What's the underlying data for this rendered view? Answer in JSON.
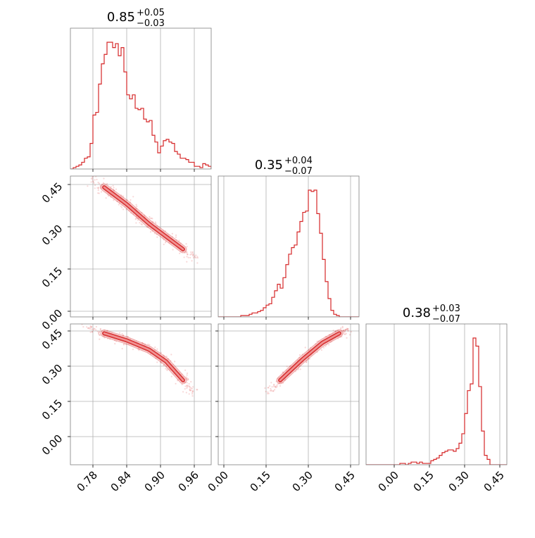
{
  "chart_data": {
    "type": "corner",
    "color": "#d62728",
    "params": [
      {
        "median": "0.85",
        "plus": "+0.05",
        "minus": "−0.03",
        "range": [
          0.74,
          0.99
        ],
        "ticks": [
          0.78,
          0.84,
          0.9,
          0.96
        ],
        "tick_labels": [
          "0.78",
          "0.84",
          "0.90",
          "0.96"
        ]
      },
      {
        "median": "0.35",
        "plus": "+0.04",
        "minus": "−0.07",
        "range": [
          -0.02,
          0.48
        ],
        "ticks": [
          0.0,
          0.15,
          0.3,
          0.45
        ],
        "tick_labels": [
          "0.00",
          "0.15",
          "0.30",
          "0.45"
        ]
      },
      {
        "median": "0.38",
        "plus": "+0.03",
        "minus": "−0.07",
        "range": [
          -0.12,
          0.48
        ],
        "ticks": [
          0.0,
          0.15,
          0.3,
          0.45
        ],
        "tick_labels": [
          "0.00",
          "0.15",
          "0.30",
          "0.45"
        ]
      }
    ],
    "hist_1d": [
      {
        "edges_start": 0.74,
        "bin_width": 0.005,
        "counts": [
          0.0,
          0.01,
          0.02,
          0.03,
          0.05,
          0.08,
          0.09,
          0.19,
          0.4,
          0.42,
          0.63,
          0.78,
          0.85,
          0.94,
          0.94,
          0.9,
          0.93,
          0.84,
          0.9,
          0.72,
          0.55,
          0.52,
          0.55,
          0.45,
          0.44,
          0.45,
          0.37,
          0.35,
          0.36,
          0.25,
          0.2,
          0.12,
          0.17,
          0.21,
          0.22,
          0.2,
          0.19,
          0.13,
          0.11,
          0.08,
          0.08,
          0.07,
          0.05,
          0.05,
          0.02,
          0.02,
          0.01,
          0.04,
          0.03,
          0.02
        ]
      },
      {
        "edges_start": -0.02,
        "bin_width": 0.01,
        "counts": [
          0.0,
          0.0,
          0.0,
          0.0,
          0.0,
          0.0,
          0.0,
          0.0,
          0.01,
          0.01,
          0.01,
          0.02,
          0.03,
          0.03,
          0.04,
          0.05,
          0.07,
          0.09,
          0.1,
          0.15,
          0.2,
          0.25,
          0.22,
          0.3,
          0.4,
          0.48,
          0.53,
          0.55,
          0.65,
          0.73,
          0.8,
          0.81,
          0.97,
          0.96,
          0.97,
          0.79,
          0.64,
          0.44,
          0.27,
          0.14,
          0.05,
          0.02,
          0.01,
          0.0,
          0.0,
          0.0,
          0.0,
          0.0,
          0.0,
          0.0
        ]
      },
      {
        "edges_start": -0.12,
        "bin_width": 0.012,
        "counts": [
          0.0,
          0.0,
          0.0,
          0.0,
          0.0,
          0.0,
          0.0,
          0.0,
          0.0,
          0.0,
          0.0,
          0.0,
          0.01,
          0.01,
          0.0,
          0.01,
          0.02,
          0.02,
          0.01,
          0.02,
          0.01,
          0.01,
          0.01,
          0.03,
          0.04,
          0.05,
          0.07,
          0.09,
          0.1,
          0.11,
          0.11,
          0.1,
          0.12,
          0.16,
          0.23,
          0.38,
          0.55,
          0.6,
          0.94,
          0.88,
          0.58,
          0.25,
          0.07,
          0.04,
          0.0,
          0.0,
          0.0,
          0.0,
          0.0,
          0.0
        ]
      }
    ],
    "hist_2d": [
      {
        "x_param": 0,
        "y_param": 1,
        "curve": {
          "x": [
            0.8,
            0.84,
            0.88,
            0.94
          ],
          "y": [
            0.44,
            0.38,
            0.31,
            0.22
          ]
        },
        "x_sd": 0.003,
        "y_sd": 0.008
      },
      {
        "x_param": 0,
        "y_param": 2,
        "curve": {
          "x": [
            0.8,
            0.84,
            0.88,
            0.91,
            0.94
          ],
          "y": [
            0.44,
            0.41,
            0.37,
            0.32,
            0.24
          ]
        },
        "x_sd": 0.003,
        "y_sd": 0.008
      },
      {
        "x_param": 1,
        "y_param": 2,
        "curve": {
          "x": [
            0.2,
            0.28,
            0.35,
            0.41
          ],
          "y": [
            0.24,
            0.33,
            0.4,
            0.44
          ]
        },
        "x_sd": 0.006,
        "y_sd": 0.006
      }
    ],
    "grid": true,
    "legend": "none"
  }
}
